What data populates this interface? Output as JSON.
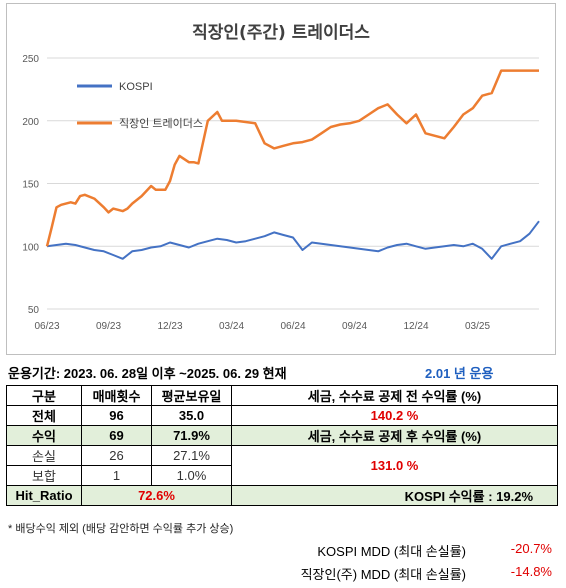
{
  "chart_data": {
    "type": "line",
    "title": "직장인(주간) 트레이더스",
    "ylim": [
      50,
      250
    ],
    "yticks": [
      "50",
      "100",
      "150",
      "200",
      "250"
    ],
    "xticks": [
      "06/23",
      "09/23",
      "12/23",
      "03/24",
      "06/24",
      "09/24",
      "12/24",
      "03/25"
    ],
    "grid": true,
    "legend": "top-left",
    "series": [
      {
        "name": "KOSPI",
        "color": "#4472c4",
        "x": [
          0,
          2,
          4,
          6,
          8,
          10,
          12,
          14,
          16,
          18,
          20,
          22,
          24,
          26,
          28,
          30,
          32,
          34,
          36,
          38,
          40,
          42,
          44,
          46,
          48,
          50,
          52,
          54,
          56,
          58,
          60,
          62,
          64,
          66,
          68,
          70,
          72,
          74,
          76,
          78,
          80,
          82,
          84,
          86,
          88,
          90,
          92,
          94,
          96,
          98,
          100,
          102,
          104
        ],
        "values": [
          100,
          101,
          102,
          101,
          99,
          97,
          96,
          93,
          90,
          96,
          97,
          99,
          100,
          103,
          101,
          99,
          102,
          104,
          106,
          105,
          103,
          104,
          106,
          108,
          111,
          109,
          107,
          97,
          103,
          102,
          101,
          100,
          99,
          98,
          97,
          96,
          99,
          101,
          102,
          100,
          98,
          99,
          100,
          101,
          100,
          102,
          98,
          90,
          100,
          102,
          104,
          110,
          120
        ]
      },
      {
        "name": "직장인 트레이더스",
        "color": "#ed7d31",
        "x": [
          0,
          1,
          2,
          3,
          5,
          6,
          7,
          8,
          10,
          12,
          13,
          14,
          16,
          17,
          18,
          20,
          22,
          23,
          25,
          26,
          27,
          28,
          30,
          31,
          32,
          34,
          36,
          37,
          38,
          40,
          44,
          46,
          48,
          50,
          52,
          54,
          56,
          58,
          60,
          62,
          64,
          66,
          68,
          70,
          72,
          74,
          76,
          78,
          80,
          82,
          84,
          86,
          88,
          90,
          92,
          94,
          96,
          98,
          100,
          102,
          103,
          104
        ],
        "values": [
          100,
          115,
          131,
          133,
          135,
          134,
          140,
          141,
          138,
          131,
          127,
          130,
          128,
          130,
          134,
          140,
          148,
          145,
          145,
          152,
          165,
          172,
          167,
          167,
          166,
          200,
          207,
          200,
          200,
          200,
          198,
          182,
          178,
          180,
          182,
          183,
          185,
          190,
          195,
          197,
          198,
          200,
          205,
          210,
          213,
          205,
          198,
          205,
          190,
          188,
          186,
          195,
          205,
          210,
          220,
          222,
          240,
          240,
          240,
          240,
          240,
          240
        ]
      }
    ]
  },
  "summary": {
    "period_text": "운용기간: 2023. 06. 28일 이후 ~2025. 06. 29 현재",
    "years_text": "2.01   년 운용"
  },
  "table": {
    "header": {
      "col1": "구분",
      "col2": "매매횟수",
      "col3": "평균보유일",
      "col4": "세금, 수수료 공제 전 수익률 (%)"
    },
    "total": {
      "label": "전체",
      "trades": "96",
      "hold": "35.0",
      "ret_before": "140.2  %"
    },
    "profit": {
      "label": "수익",
      "trades": "69",
      "hold": "71.9%",
      "ret_after_label": "세금, 수수료 공제 후 수익률 (%)"
    },
    "loss": {
      "label": "손실",
      "trades": "26",
      "hold": "27.1%",
      "ret_after": "131.0  %"
    },
    "hold_row": {
      "label": "보합",
      "trades": "1",
      "hold": "1.0%"
    },
    "hit": {
      "label": "Hit_Ratio",
      "value": "72.6%",
      "kospi_text": "KOSPI 수익률 : 19.2%"
    }
  },
  "note": "* 배당수익 제외 (배당 감안하면 수익률 추가 상승)",
  "mdd": {
    "kospi_label": "KOSPI MDD (최대 손실률)",
    "kospi_value": "-20.7%",
    "strategy_label": "직장인(주) MDD (최대 손실률)",
    "strategy_value": "-14.8%"
  }
}
